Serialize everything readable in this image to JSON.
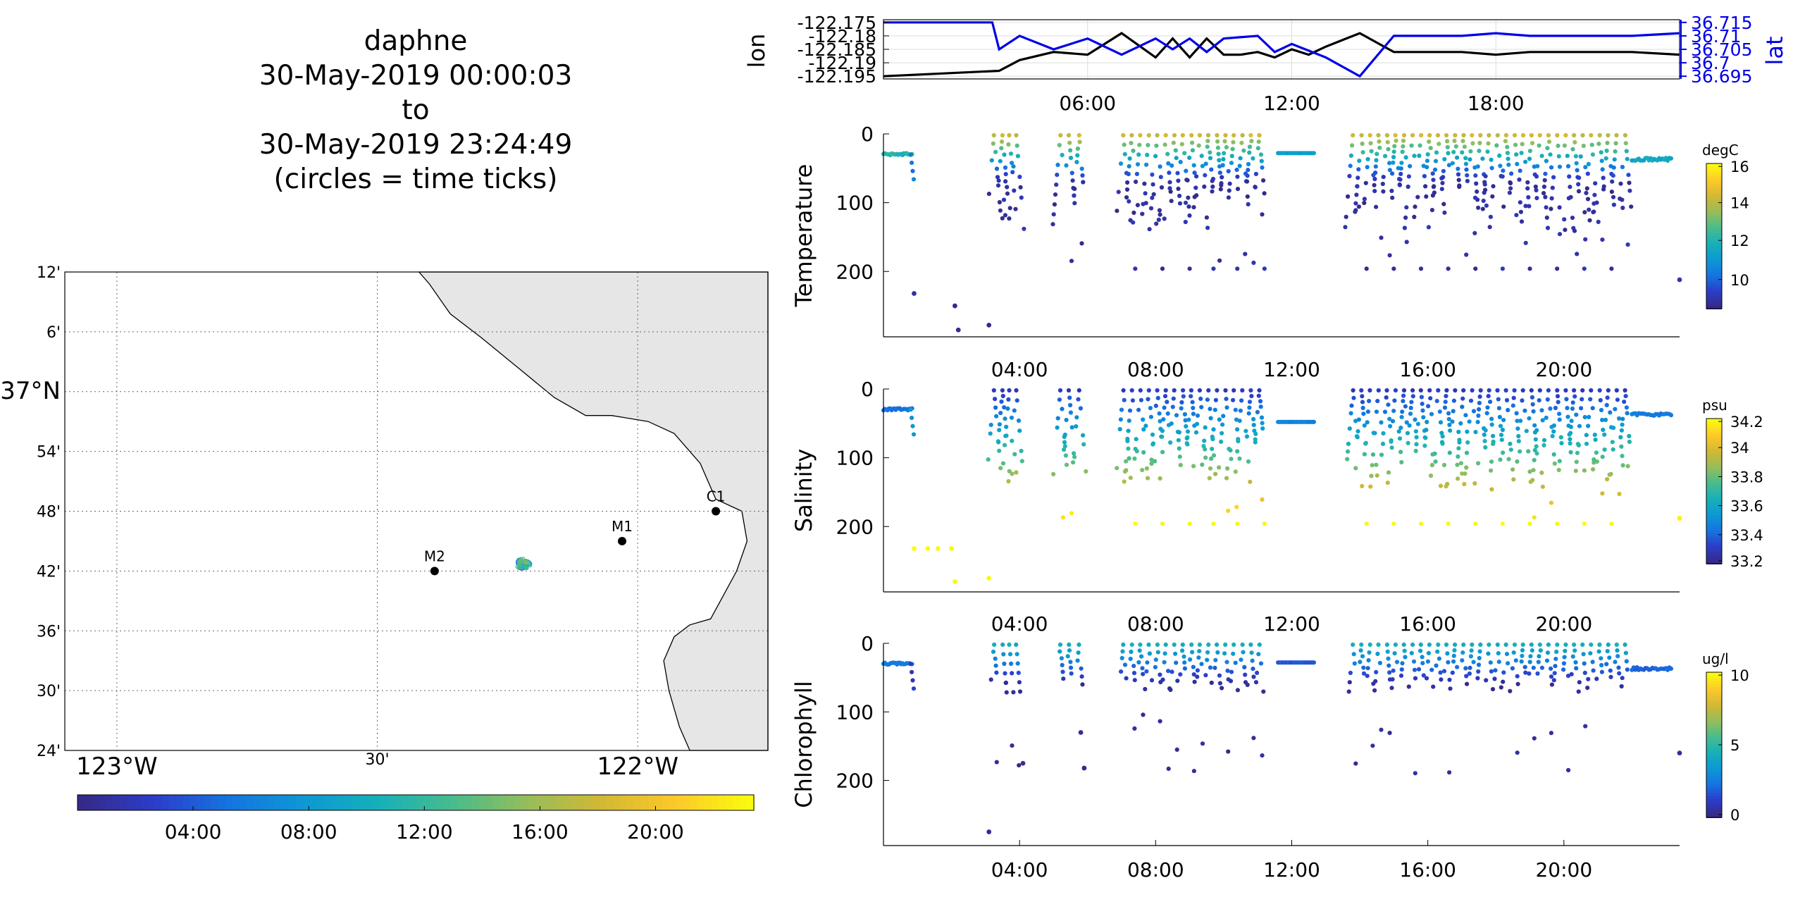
{
  "title_lines": [
    "daphne",
    "30-May-2019 00:00:03",
    "to",
    "30-May-2019 23:24:49",
    "(circles = time ticks)"
  ],
  "colors": {
    "lon_line": "#000000",
    "lat_line": "#0000e6",
    "land": "#e6e6e6",
    "parula": [
      "#352a87",
      "#2c3dcb",
      "#1575e0",
      "#0d98d4",
      "#16b0b8",
      "#48bc8c",
      "#95bd5b",
      "#d2b834",
      "#fdc92a",
      "#f9fb0e"
    ]
  },
  "map": {
    "lat_labels": [
      "12'",
      "6'",
      "37°N",
      "54'",
      "48'",
      "42'",
      "36'",
      "30'",
      "24'"
    ],
    "lon_labels": [
      "123°W",
      "30'",
      "122°W"
    ],
    "stations": [
      {
        "name": "M2",
        "lon": -122.39,
        "lat": 36.7
      },
      {
        "name": "M1",
        "lon": -122.03,
        "lat": 36.75
      },
      {
        "name": "C1",
        "lon": -121.85,
        "lat": 36.8
      }
    ],
    "time_colorbar_labels": [
      "04:00",
      "08:00",
      "12:00",
      "16:00",
      "20:00"
    ]
  },
  "chart_data": [
    {
      "type": "line",
      "title": "",
      "xlabel": "",
      "ylabel_left": "lon",
      "ylabel_right": "lat",
      "x_ticks": [
        "06:00",
        "12:00",
        "18:00"
      ],
      "xlim_hours": [
        0,
        23.4
      ],
      "y_left_ticks": [
        "-122.175",
        "-122.18",
        "-122.185",
        "-122.19",
        "-122.195"
      ],
      "ylim_left": [
        -122.196,
        -122.174
      ],
      "y_right_ticks": [
        "36.715",
        "36.71",
        "36.705",
        "36.7",
        "36.695"
      ],
      "ylim_right": [
        36.694,
        36.716
      ],
      "series": [
        {
          "name": "lon",
          "axis": "left",
          "x": [
            0,
            3.4,
            4,
            5,
            6,
            7,
            8,
            8.5,
            9,
            9.5,
            10,
            10.5,
            11,
            11.5,
            12,
            12.5,
            13,
            14,
            15,
            16,
            17,
            18,
            19,
            20,
            21,
            22,
            23.4
          ],
          "y": [
            -122.195,
            -122.193,
            -122.189,
            -122.186,
            -122.187,
            -122.179,
            -122.188,
            -122.181,
            -122.188,
            -122.181,
            -122.187,
            -122.187,
            -122.186,
            -122.188,
            -122.185,
            -122.187,
            -122.184,
            -122.179,
            -122.186,
            -122.186,
            -122.186,
            -122.187,
            -122.186,
            -122.186,
            -122.186,
            -122.186,
            -122.187
          ]
        },
        {
          "name": "lat",
          "axis": "right",
          "x": [
            0,
            3.2,
            3.4,
            4,
            5,
            6,
            7,
            8,
            8.5,
            9,
            9.5,
            10,
            11,
            11.5,
            12,
            13,
            14,
            15,
            16,
            17,
            18,
            19,
            20,
            21,
            22,
            23.4
          ],
          "y": [
            36.715,
            36.715,
            36.705,
            36.71,
            36.705,
            36.709,
            36.703,
            36.709,
            36.705,
            36.709,
            36.704,
            36.709,
            36.71,
            36.704,
            36.707,
            36.702,
            36.695,
            36.71,
            36.71,
            36.71,
            36.711,
            36.71,
            36.71,
            36.71,
            36.71,
            36.711
          ]
        }
      ]
    },
    {
      "type": "scatter",
      "title": "",
      "ylabel": "Temperature",
      "colorbar_label": "degC",
      "colorbar_ticks": [
        "16",
        "14",
        "12",
        "10"
      ],
      "clim": [
        9.2,
        16
      ],
      "x_ticks": [],
      "y_ticks": [
        "0",
        "100",
        "200"
      ],
      "ylim": [
        0,
        295
      ],
      "xlim_hours": [
        0,
        23.4
      ],
      "deep_points": [
        [
          0.9,
          232
        ],
        [
          2.1,
          250
        ],
        [
          2.2,
          285
        ],
        [
          3.1,
          278
        ],
        [
          23.4,
          212
        ]
      ]
    },
    {
      "type": "scatter",
      "title": "",
      "ylabel": "Salinity",
      "colorbar_label": "psu",
      "colorbar_ticks": [
        "34.2",
        "34",
        "33.8",
        "33.6",
        "33.4",
        "33.2"
      ],
      "clim": [
        33.2,
        34.2
      ],
      "x_ticks": [
        "04:00",
        "08:00",
        "12:00",
        "16:00",
        "20:00"
      ],
      "y_ticks": [
        "0",
        "100",
        "200"
      ],
      "ylim": [
        0,
        295
      ],
      "xlim_hours": [
        0,
        23.4
      ],
      "deep_points": [
        [
          0.9,
          232
        ],
        [
          1.3,
          232
        ],
        [
          1.6,
          232
        ],
        [
          2.0,
          232
        ],
        [
          2.1,
          280
        ],
        [
          3.1,
          275
        ],
        [
          23.4,
          188
        ]
      ]
    },
    {
      "type": "scatter",
      "title": "",
      "ylabel": "Chlorophyll",
      "colorbar_label": "ug/l",
      "colorbar_ticks": [
        "10",
        "5",
        "0"
      ],
      "clim": [
        0,
        10
      ],
      "x_ticks": [
        "04:00",
        "08:00",
        "12:00",
        "16:00",
        "20:00"
      ],
      "x_ticks_bottom": [
        "04:00",
        "08:00",
        "12:00",
        "16:00",
        "20:00"
      ],
      "y_ticks": [
        "0",
        "100",
        "200"
      ],
      "ylim": [
        0,
        295
      ],
      "xlim_hours": [
        0,
        23.4
      ],
      "deep_points": [
        [
          3.1,
          275
        ],
        [
          4.1,
          175
        ],
        [
          5.8,
          130
        ],
        [
          5.9,
          182
        ],
        [
          23.4,
          160
        ]
      ]
    }
  ]
}
